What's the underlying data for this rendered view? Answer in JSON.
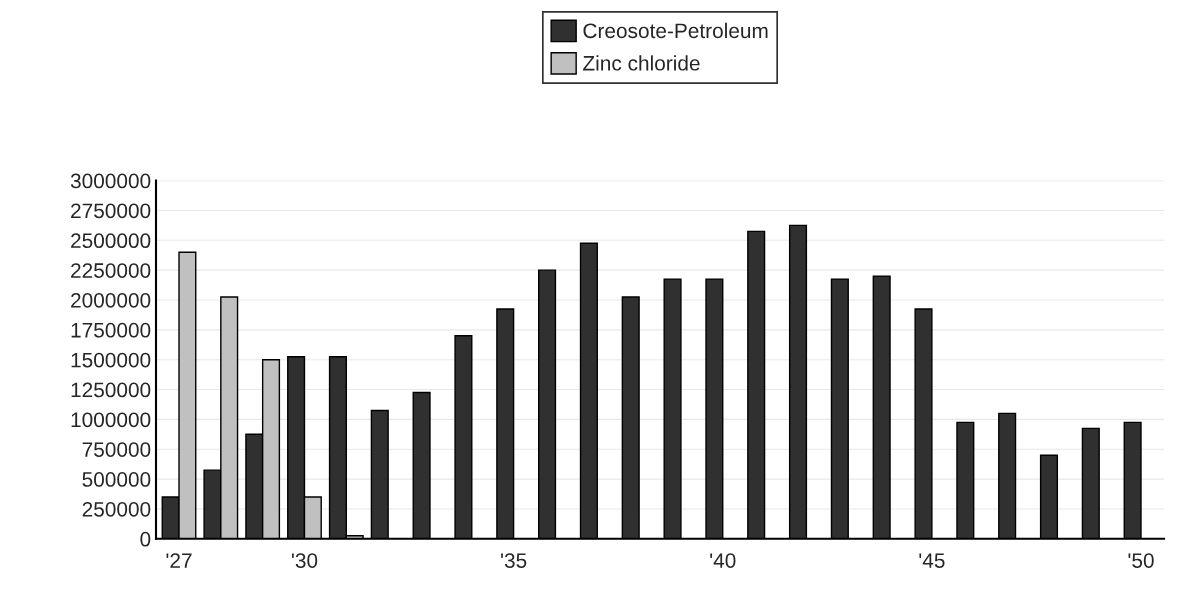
{
  "chart_data": {
    "type": "bar",
    "categories": [
      "'27",
      null,
      null,
      "'30",
      null,
      null,
      null,
      null,
      "'35",
      null,
      null,
      null,
      null,
      "'40",
      null,
      null,
      null,
      null,
      "'45",
      null,
      null,
      null,
      null,
      "'50"
    ],
    "series": [
      {
        "name": "Creosote-Petroleum",
        "color": "#303030",
        "values": [
          350000,
          575000,
          875000,
          1525000,
          1525000,
          1075000,
          1225000,
          1700000,
          1925000,
          2250000,
          2475000,
          2025000,
          2175000,
          2175000,
          2575000,
          2625000,
          2175000,
          2200000,
          1925000,
          975000,
          1050000,
          700000,
          925000,
          975000
        ]
      },
      {
        "name": "Zinc chloride",
        "color": "#c0c0c0",
        "values": [
          2400000,
          2025000,
          1500000,
          350000,
          25000,
          null,
          null,
          null,
          null,
          null,
          null,
          null,
          null,
          null,
          null,
          null,
          null,
          null,
          null,
          null,
          null,
          null,
          null,
          null
        ]
      }
    ],
    "ylim": [
      0,
      3000000
    ],
    "yticks": [
      0,
      250000,
      500000,
      750000,
      1000000,
      1250000,
      1500000,
      1750000,
      2000000,
      2250000,
      2500000,
      2750000,
      3000000
    ],
    "grid": "y",
    "legend": "top"
  }
}
